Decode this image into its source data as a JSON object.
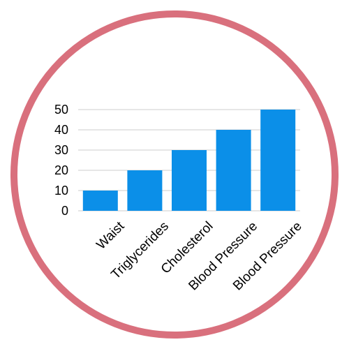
{
  "frame": {
    "ring_color": "#d9707d"
  },
  "chart_data": {
    "type": "bar",
    "categories": [
      "Waist",
      "Triglycerides",
      "Cholesterol",
      "Blood Pressure",
      "Blood Pressure"
    ],
    "values": [
      10,
      20,
      30,
      40,
      50
    ],
    "yticks": [
      "0",
      "10",
      "20",
      "30",
      "40",
      "50"
    ],
    "ylim": [
      0,
      50
    ],
    "title": "",
    "xlabel": "",
    "ylabel": "",
    "grid": true,
    "legend": "none",
    "bar_color": "#0b8fe8",
    "grid_color": "#cccccc"
  }
}
